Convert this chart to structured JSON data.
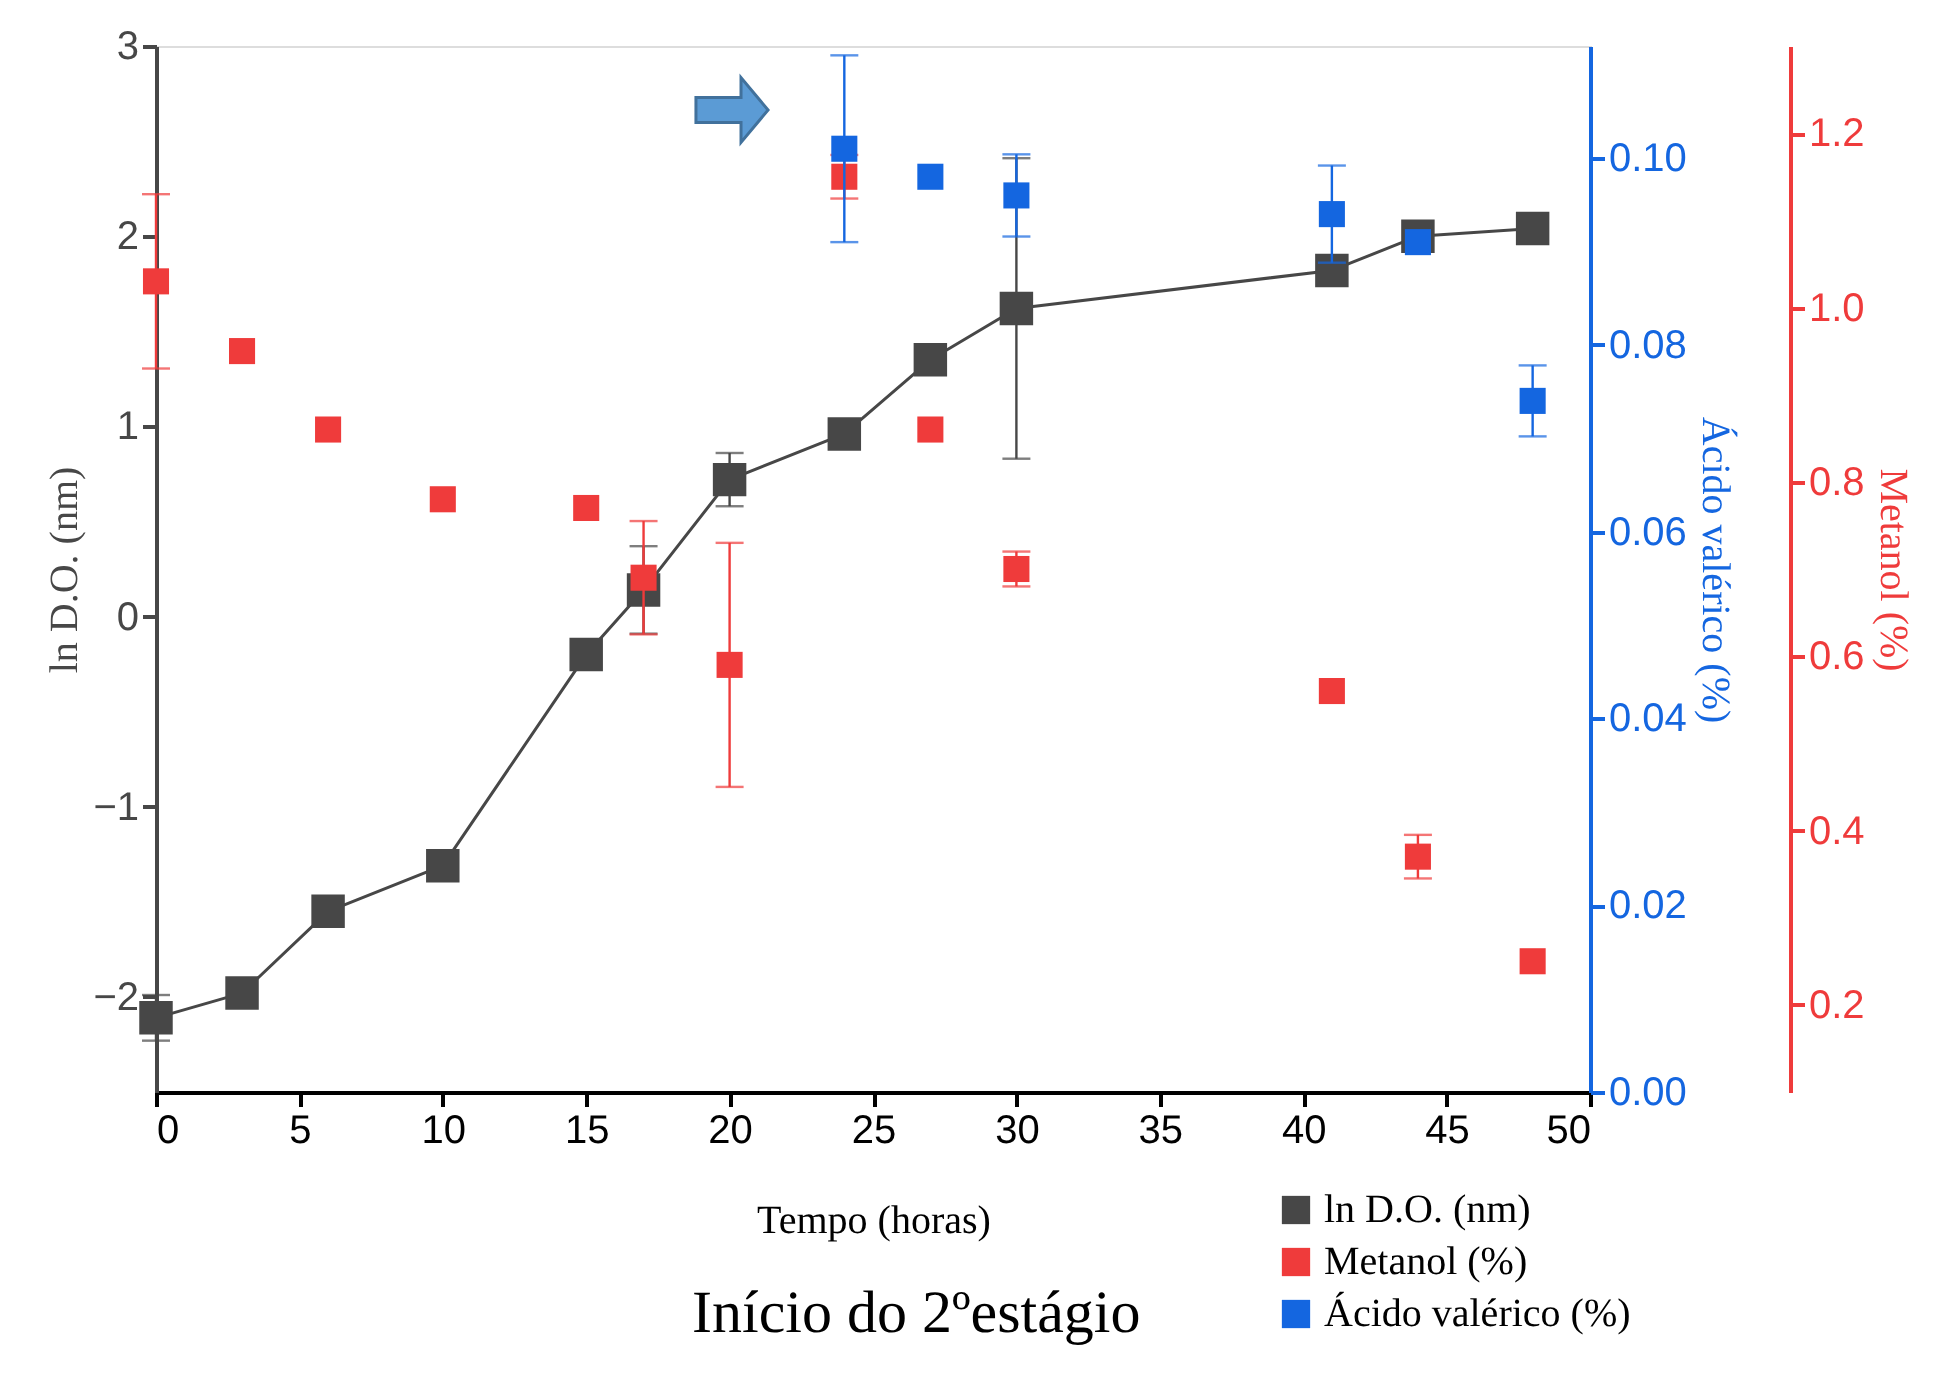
{
  "chart_data": {
    "type": "scatter",
    "xlabel": "Tempo (horas)",
    "ylabel": "ln D.O. (nm)",
    "y2label": "Ácido valérico (%)",
    "y3label": "Metanol (%)",
    "x": [
      0,
      3,
      6,
      10,
      15,
      17,
      20,
      24,
      27,
      30,
      41,
      44,
      48
    ],
    "series": [
      {
        "name": "ln D.O. (nm)",
        "type": "line",
        "marker": "square",
        "line_style": "solid",
        "color": "#474747",
        "axis": "y",
        "values": [
          -2.11,
          -1.98,
          -1.55,
          -1.31,
          -0.2,
          0.14,
          0.72,
          0.96,
          1.35,
          1.62,
          1.82,
          2.0,
          2.04
        ],
        "errors": [
          0.12,
          null,
          null,
          null,
          null,
          0.23,
          0.14,
          0.05,
          null,
          0.79,
          null,
          null,
          null
        ]
      },
      {
        "name": "Metanol (%)",
        "marker": "square",
        "color": "#ef3b3b",
        "axis": "y3",
        "values": [
          1.03,
          0.95,
          0.86,
          0.78,
          0.77,
          0.69,
          0.59,
          1.15,
          0.86,
          0.7,
          0.56,
          0.37,
          0.25
        ],
        "errors": [
          0.1,
          null,
          null,
          null,
          null,
          0.065,
          0.14,
          0.025,
          null,
          0.02,
          null,
          0.025,
          null
        ]
      },
      {
        "name": "Ácido valérico (%)",
        "marker": "square",
        "color": "#1466e0",
        "axis": "y2",
        "values": [
          null,
          null,
          null,
          null,
          null,
          null,
          null,
          0.101,
          0.098,
          0.096,
          0.094,
          0.091,
          0.074
        ],
        "errors": [
          null,
          null,
          null,
          null,
          null,
          null,
          null,
          0.01,
          null,
          0.0044,
          0.0052,
          null,
          0.0038
        ]
      }
    ],
    "xlim": [
      0,
      50
    ],
    "xticks": [
      0,
      5,
      10,
      15,
      20,
      25,
      30,
      35,
      40,
      45,
      50
    ],
    "ylim": [
      -2.5,
      3
    ],
    "yticks": [
      -2,
      -1,
      0,
      1,
      2,
      3
    ],
    "y2lim": [
      0,
      0.112
    ],
    "y2ticks": [
      {
        "value": 0,
        "label": "0.00"
      },
      {
        "value": 0.02,
        "label": "0.02"
      },
      {
        "value": 0.04,
        "label": "0.04"
      },
      {
        "value": 0.06,
        "label": "0.06"
      },
      {
        "value": 0.08,
        "label": "0.08"
      },
      {
        "value": 0.1,
        "label": "0.10"
      }
    ],
    "y3lim": [
      0.1,
      1.3
    ],
    "y3ticks": [
      {
        "value": 0.2,
        "label": "0.2"
      },
      {
        "value": 0.4,
        "label": "0.4"
      },
      {
        "value": 0.6,
        "label": "0.6"
      },
      {
        "value": 0.8,
        "label": "0.8"
      },
      {
        "value": 1,
        "label": "1.0"
      },
      {
        "value": 1.2,
        "label": "1.2"
      }
    ],
    "grid": false,
    "legend": "bottom right",
    "annotations": [
      "Início do 2ºestágio"
    ]
  }
}
